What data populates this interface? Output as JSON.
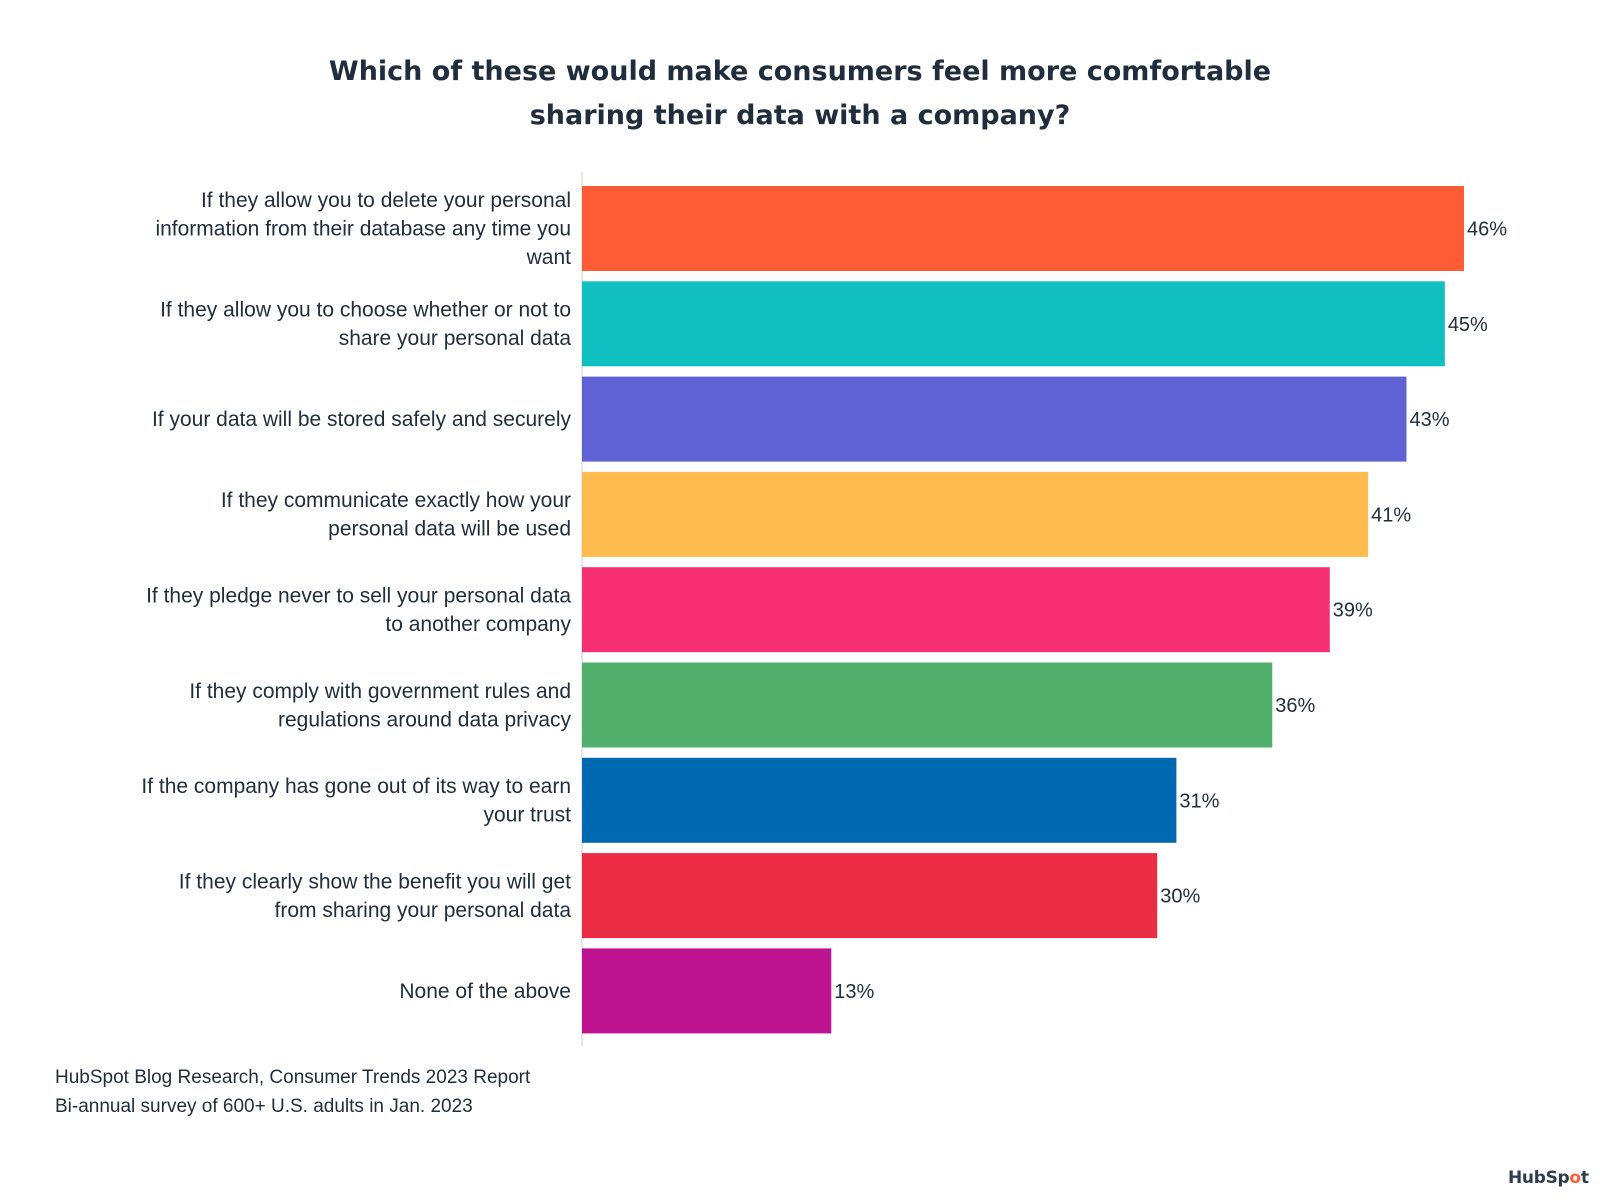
{
  "chart_data": {
    "type": "bar",
    "orientation": "horizontal",
    "title_lines": [
      "Which of these would make consumers feel more comfortable",
      "sharing their data with a company?"
    ],
    "categories": [
      [
        "If they allow you to delete your personal",
        "information from their database any time you",
        "want"
      ],
      [
        "If they allow you to choose whether or not to",
        "share your personal data"
      ],
      [
        "If your data will be stored safely and securely"
      ],
      [
        "If they communicate exactly how your",
        "personal data will be used"
      ],
      [
        "If they pledge never to sell your personal data",
        "to another company"
      ],
      [
        "If they comply with government rules and",
        "regulations around data privacy"
      ],
      [
        "If the company has gone out of its way to earn",
        "your trust"
      ],
      [
        "If they clearly show the benefit you will get",
        "from sharing your personal data"
      ],
      [
        "None of the above"
      ]
    ],
    "values": [
      46,
      45,
      43,
      41,
      39,
      36,
      31,
      30,
      13
    ],
    "value_labels": [
      "46%",
      "45%",
      "43%",
      "41%",
      "39%",
      "36%",
      "31%",
      "30%",
      "13%"
    ],
    "colors": [
      "#ff5c35",
      "#10bfbf",
      "#5e62d5",
      "#ffbb50",
      "#f52f72",
      "#50b06b",
      "#0068b1",
      "#ea2d42",
      "#be1390"
    ],
    "xlim": [
      0,
      46
    ],
    "grid": false,
    "legend": "none"
  },
  "footer": {
    "source": "HubSpot Blog Research, Consumer Trends 2023 Report",
    "note": "Bi-annual survey of 600+ U.S. adults in Jan. 2023"
  },
  "logo": {
    "name": "HubSpot",
    "text_a": "HubSp",
    "text_b": "o",
    "text_c": "t"
  }
}
